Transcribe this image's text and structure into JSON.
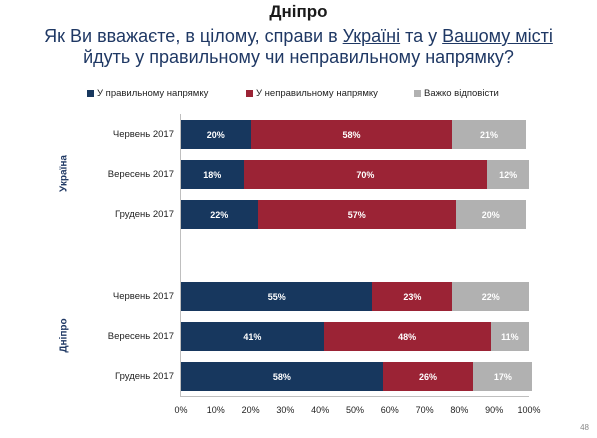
{
  "header": {
    "title": "Дніпро"
  },
  "question": {
    "part1": "Як Ви вважаєте, в цілому, справи в ",
    "u1": "Україні",
    "part2": " та у ",
    "u2": "Вашому місті",
    "line2": "йдуть у правильному чи неправильному напрямку?"
  },
  "colors": {
    "right": "#17375e",
    "wrong": "#9b2335",
    "hard": "#b1b1b1"
  },
  "chart_data": {
    "type": "bar",
    "orientation": "horizontal",
    "stacked": true,
    "legend": [
      {
        "name": "У правильному напрямку",
        "color": "#17375e"
      },
      {
        "name": "У неправильному напрямку",
        "color": "#9b2335"
      },
      {
        "name": "Важко відповісти",
        "color": "#b1b1b1"
      }
    ],
    "xlim": [
      0,
      100
    ],
    "ticks": [
      "0%",
      "10%",
      "20%",
      "30%",
      "40%",
      "50%",
      "60%",
      "70%",
      "80%",
      "90%",
      "100%"
    ],
    "groups": [
      {
        "name": "Україна",
        "rows": [
          {
            "label": "Червень 2017",
            "values": [
              20,
              58,
              21
            ]
          },
          {
            "label": "Вересень 2017",
            "values": [
              18,
              70,
              12
            ]
          },
          {
            "label": "Грудень 2017",
            "values": [
              22,
              57,
              20
            ]
          }
        ]
      },
      {
        "name": "Дніпро",
        "rows": [
          {
            "label": "Червень 2017",
            "values": [
              55,
              23,
              22
            ]
          },
          {
            "label": "Вересень 2017",
            "values": [
              41,
              48,
              11
            ]
          },
          {
            "label": "Грудень 2017",
            "values": [
              58,
              26,
              17
            ]
          }
        ]
      }
    ]
  },
  "page_number": "48"
}
